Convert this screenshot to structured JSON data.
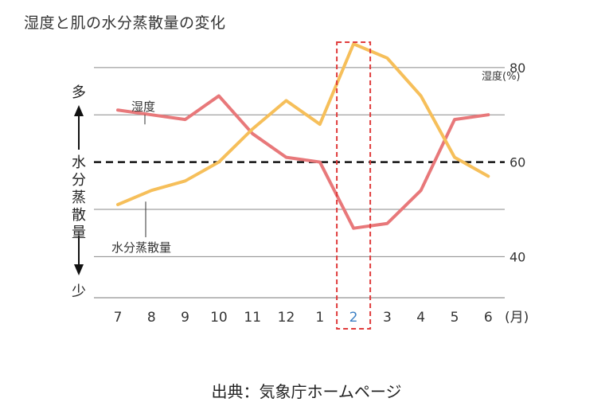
{
  "page": {
    "title": "湿度と肌の水分蒸散量の変化",
    "source": "出典：気象庁ホームページ"
  },
  "chart_data": {
    "type": "line",
    "categories": [
      "7",
      "8",
      "9",
      "10",
      "11",
      "12",
      "1",
      "2",
      "3",
      "4",
      "5",
      "6"
    ],
    "x_unit": "(月)",
    "highlight_category": "2",
    "highlight_color": "#e03c3c",
    "highlight_label_color": "#3a7fc4",
    "right_axis": {
      "label": "湿度(%)",
      "ticks": [
        "40",
        "60",
        "80"
      ],
      "ylim": [
        35,
        83
      ]
    },
    "left_axis": {
      "label": "水分蒸散量",
      "top_label": "多",
      "bottom_label": "少"
    },
    "dashed_line_y": 60,
    "series": [
      {
        "name": "湿度",
        "color": "#e8787a",
        "values": [
          71,
          70,
          69,
          74,
          66,
          61,
          60,
          46,
          47,
          54,
          69,
          70
        ]
      },
      {
        "name": "水分蒸散量",
        "color": "#f6bf5a",
        "values": [
          51,
          54,
          56,
          60,
          67,
          73,
          68,
          85,
          82,
          74,
          61,
          57
        ]
      }
    ]
  }
}
